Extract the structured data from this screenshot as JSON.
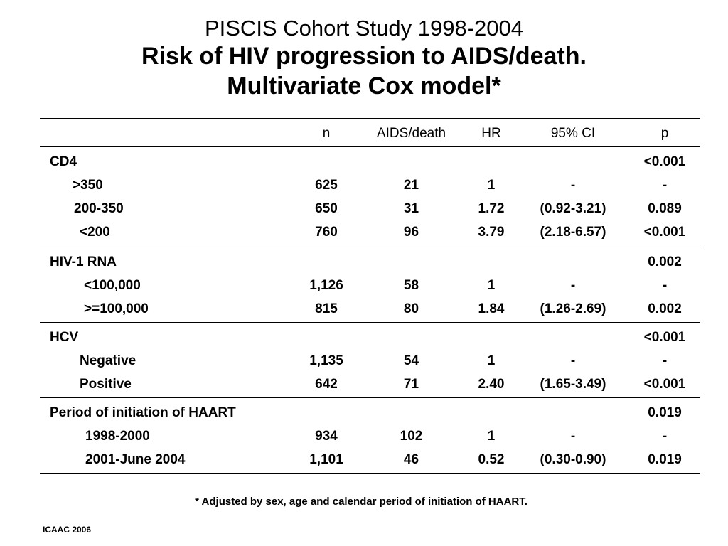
{
  "title": {
    "line1": "PISCIS Cohort Study 1998-2004",
    "line2": "Risk of HIV progression to AIDS/death.",
    "line3": "Multivariate Cox model*"
  },
  "table": {
    "headers": {
      "label": "",
      "n": "n",
      "events": "AIDS/death",
      "hr": "HR",
      "ci": "95% CI",
      "p": "p"
    },
    "groups": [
      {
        "name": "CD4",
        "p": "<0.001",
        "rows": [
          {
            "label": ">350",
            "n": "625",
            "events": "21",
            "hr": "1",
            "ci": "-",
            "p": "-"
          },
          {
            "label": "200-350",
            "n": "650",
            "events": "31",
            "hr": "1.72",
            "ci": "(0.92-3.21)",
            "p": "0.089"
          },
          {
            "label": "<200",
            "n": "760",
            "events": "96",
            "hr": "3.79",
            "ci": "(2.18-6.57)",
            "p": "<0.001"
          }
        ]
      },
      {
        "name": "HIV-1 RNA",
        "p": "0.002",
        "rows": [
          {
            "label": "<100,000",
            "n": "1,126",
            "events": "58",
            "hr": "1",
            "ci": "-",
            "p": "-"
          },
          {
            "label": ">=100,000",
            "n": "815",
            "events": "80",
            "hr": "1.84",
            "ci": "(1.26-2.69)",
            "p": "0.002"
          }
        ]
      },
      {
        "name": "HCV",
        "p": "<0.001",
        "rows": [
          {
            "label": "Negative",
            "n": "1,135",
            "events": "54",
            "hr": "1",
            "ci": "-",
            "p": "-"
          },
          {
            "label": "Positive",
            "n": "642",
            "events": "71",
            "hr": "2.40",
            "ci": "(1.65-3.49)",
            "p": "<0.001"
          }
        ]
      },
      {
        "name": "Period of initiation of HAART",
        "p": "0.019",
        "rows": [
          {
            "label": "1998-2000",
            "n": "934",
            "events": "102",
            "hr": "1",
            "ci": "-",
            "p": "-"
          },
          {
            "label": "2001-June 2004",
            "n": "1,101",
            "events": "46",
            "hr": "0.52",
            "ci": "(0.30-0.90)",
            "p": "0.019"
          }
        ]
      }
    ]
  },
  "footnote": "* Adjusted by sex, age and calendar period of initiation of HAART.",
  "source": "ICAAC 2006"
}
